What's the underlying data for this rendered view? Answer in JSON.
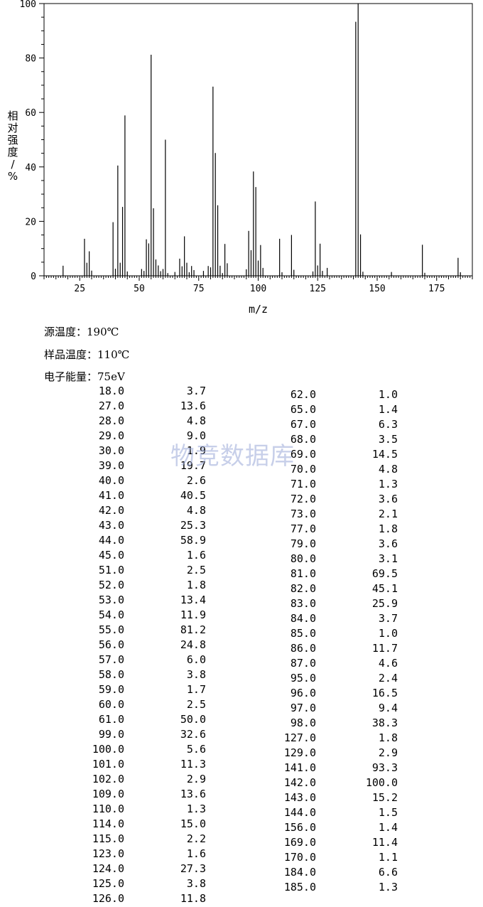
{
  "chart_data": {
    "type": "bar",
    "xlabel": "m/z",
    "ylabel": "相对强度/%",
    "xlim": [
      10,
      190
    ],
    "ylim": [
      0,
      100
    ],
    "x_ticks": [
      25,
      50,
      75,
      100,
      125,
      150,
      175
    ],
    "y_ticks": [
      0,
      20,
      40,
      60,
      80,
      100
    ],
    "grid": false,
    "peaks": [
      [
        18,
        3.7
      ],
      [
        27,
        13.6
      ],
      [
        28,
        4.8
      ],
      [
        29,
        9.0
      ],
      [
        30,
        1.9
      ],
      [
        39,
        19.7
      ],
      [
        40,
        2.6
      ],
      [
        41,
        40.5
      ],
      [
        42,
        4.8
      ],
      [
        43,
        25.3
      ],
      [
        44,
        58.9
      ],
      [
        45,
        1.6
      ],
      [
        51,
        2.5
      ],
      [
        52,
        1.8
      ],
      [
        53,
        13.4
      ],
      [
        54,
        11.9
      ],
      [
        55,
        81.2
      ],
      [
        56,
        24.8
      ],
      [
        57,
        6.0
      ],
      [
        58,
        3.8
      ],
      [
        59,
        1.7
      ],
      [
        60,
        2.5
      ],
      [
        61,
        50.0
      ],
      [
        62,
        1.0
      ],
      [
        65,
        1.4
      ],
      [
        67,
        6.3
      ],
      [
        68,
        3.5
      ],
      [
        69,
        14.5
      ],
      [
        70,
        4.8
      ],
      [
        71,
        1.3
      ],
      [
        72,
        3.6
      ],
      [
        73,
        2.1
      ],
      [
        77,
        1.8
      ],
      [
        79,
        3.6
      ],
      [
        80,
        3.1
      ],
      [
        81,
        69.5
      ],
      [
        82,
        45.1
      ],
      [
        83,
        25.9
      ],
      [
        84,
        3.7
      ],
      [
        85,
        1.0
      ],
      [
        86,
        11.7
      ],
      [
        87,
        4.6
      ],
      [
        95,
        2.4
      ],
      [
        96,
        16.5
      ],
      [
        97,
        9.4
      ],
      [
        98,
        38.3
      ],
      [
        99,
        32.6
      ],
      [
        100,
        5.6
      ],
      [
        101,
        11.3
      ],
      [
        102,
        2.9
      ],
      [
        109,
        13.6
      ],
      [
        110,
        1.3
      ],
      [
        114,
        15.0
      ],
      [
        115,
        2.2
      ],
      [
        123,
        1.6
      ],
      [
        124,
        27.3
      ],
      [
        125,
        3.8
      ],
      [
        126,
        11.8
      ],
      [
        127,
        1.8
      ],
      [
        129,
        2.9
      ],
      [
        141,
        93.3
      ],
      [
        142,
        100.0
      ],
      [
        143,
        15.2
      ],
      [
        144,
        1.5
      ],
      [
        156,
        1.4
      ],
      [
        169,
        11.4
      ],
      [
        170,
        1.1
      ],
      [
        184,
        6.6
      ],
      [
        185,
        1.3
      ]
    ]
  },
  "meta": {
    "source_temp": {
      "label": "源温度：",
      "value": "190℃"
    },
    "sample_temp": {
      "label": "样品温度：",
      "value": "110℃"
    },
    "electron_energy": {
      "label": "电子能量：",
      "value": "75eV"
    }
  },
  "watermark": "物竞数据库",
  "table_left": [
    [
      "18.0",
      "3.7"
    ],
    [
      "27.0",
      "13.6"
    ],
    [
      "28.0",
      "4.8"
    ],
    [
      "29.0",
      "9.0"
    ],
    [
      "30.0",
      "1.9"
    ],
    [
      "39.0",
      "19.7"
    ],
    [
      "40.0",
      "2.6"
    ],
    [
      "41.0",
      "40.5"
    ],
    [
      "42.0",
      "4.8"
    ],
    [
      "43.0",
      "25.3"
    ],
    [
      "44.0",
      "58.9"
    ],
    [
      "45.0",
      "1.6"
    ],
    [
      "51.0",
      "2.5"
    ],
    [
      "52.0",
      "1.8"
    ],
    [
      "53.0",
      "13.4"
    ],
    [
      "54.0",
      "11.9"
    ],
    [
      "55.0",
      "81.2"
    ],
    [
      "56.0",
      "24.8"
    ],
    [
      "57.0",
      "6.0"
    ],
    [
      "58.0",
      "3.8"
    ],
    [
      "59.0",
      "1.7"
    ],
    [
      "60.0",
      "2.5"
    ],
    [
      "61.0",
      "50.0"
    ],
    [
      "99.0",
      "32.6"
    ],
    [
      "100.0",
      "5.6"
    ],
    [
      "101.0",
      "11.3"
    ],
    [
      "102.0",
      "2.9"
    ],
    [
      "109.0",
      "13.6"
    ],
    [
      "110.0",
      "1.3"
    ],
    [
      "114.0",
      "15.0"
    ],
    [
      "115.0",
      "2.2"
    ],
    [
      "123.0",
      "1.6"
    ],
    [
      "124.0",
      "27.3"
    ],
    [
      "125.0",
      "3.8"
    ],
    [
      "126.0",
      "11.8"
    ]
  ],
  "table_right": [
    [
      "62.0",
      "1.0"
    ],
    [
      "65.0",
      "1.4"
    ],
    [
      "67.0",
      "6.3"
    ],
    [
      "68.0",
      "3.5"
    ],
    [
      "69.0",
      "14.5"
    ],
    [
      "70.0",
      "4.8"
    ],
    [
      "71.0",
      "1.3"
    ],
    [
      "72.0",
      "3.6"
    ],
    [
      "73.0",
      "2.1"
    ],
    [
      "77.0",
      "1.8"
    ],
    [
      "79.0",
      "3.6"
    ],
    [
      "80.0",
      "3.1"
    ],
    [
      "81.0",
      "69.5"
    ],
    [
      "82.0",
      "45.1"
    ],
    [
      "83.0",
      "25.9"
    ],
    [
      "84.0",
      "3.7"
    ],
    [
      "85.0",
      "1.0"
    ],
    [
      "86.0",
      "11.7"
    ],
    [
      "87.0",
      "4.6"
    ],
    [
      "95.0",
      "2.4"
    ],
    [
      "96.0",
      "16.5"
    ],
    [
      "97.0",
      "9.4"
    ],
    [
      "98.0",
      "38.3"
    ],
    [
      "127.0",
      "1.8"
    ],
    [
      "129.0",
      "2.9"
    ],
    [
      "141.0",
      "93.3"
    ],
    [
      "142.0",
      "100.0"
    ],
    [
      "143.0",
      "15.2"
    ],
    [
      "144.0",
      "1.5"
    ],
    [
      "156.0",
      "1.4"
    ],
    [
      "169.0",
      "11.4"
    ],
    [
      "170.0",
      "1.1"
    ],
    [
      "184.0",
      "6.6"
    ],
    [
      "185.0",
      "1.3"
    ]
  ]
}
